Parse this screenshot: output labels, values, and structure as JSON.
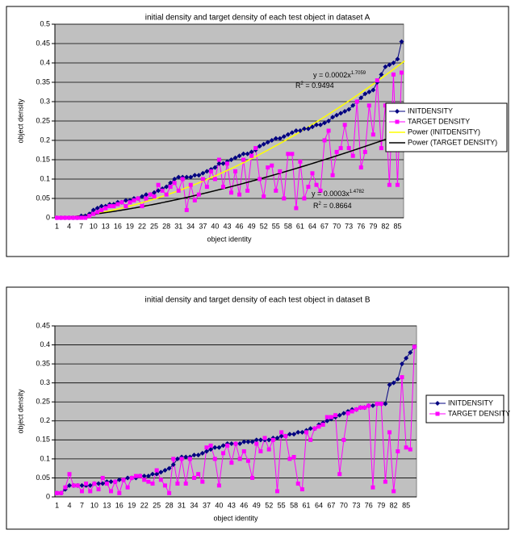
{
  "chart_data": [
    {
      "type": "line",
      "title": "initial density and target density of each test object in dataset A",
      "x_label": "object identity",
      "y_label": "object density",
      "ylim": [
        0,
        0.5
      ],
      "yticks": [
        0,
        0.05,
        0.1,
        0.15,
        0.2,
        0.25,
        0.3,
        0.35,
        0.4,
        0.45,
        0.5
      ],
      "grid": true,
      "categories": [
        "1",
        null,
        null,
        "4",
        null,
        null,
        "7",
        null,
        null,
        "10",
        null,
        null,
        "13",
        null,
        null,
        "16",
        null,
        null,
        "19",
        null,
        null,
        "22",
        null,
        null,
        "25",
        null,
        null,
        "28",
        null,
        null,
        "31",
        null,
        null,
        "34",
        null,
        null,
        "37",
        null,
        null,
        "40",
        null,
        null,
        "43",
        null,
        null,
        "46",
        null,
        null,
        "49",
        null,
        null,
        "52",
        null,
        null,
        "55",
        null,
        null,
        "58",
        null,
        null,
        "61",
        null,
        null,
        "64",
        null,
        null,
        "67",
        null,
        null,
        "70",
        null,
        null,
        "73",
        null,
        null,
        "76",
        null,
        null,
        "79",
        null,
        null,
        "82",
        null,
        null,
        "85",
        null
      ],
      "series": [
        {
          "name": "INITDENSITY",
          "color": "#000080",
          "marker": "diamond",
          "values": [
            0,
            0,
            0,
            0,
            0,
            0,
            0.005,
            0.005,
            0.01,
            0.02,
            0.025,
            0.03,
            0.03,
            0.035,
            0.035,
            0.04,
            0.04,
            0.045,
            0.045,
            0.05,
            0.05,
            0.055,
            0.06,
            0.06,
            0.065,
            0.07,
            0.075,
            0.08,
            0.09,
            0.1,
            0.105,
            0.105,
            0.105,
            0.105,
            0.11,
            0.11,
            0.115,
            0.12,
            0.125,
            0.13,
            0.14,
            0.14,
            0.145,
            0.15,
            0.155,
            0.16,
            0.165,
            0.165,
            0.17,
            0.175,
            0.185,
            0.19,
            0.195,
            0.2,
            0.205,
            0.205,
            0.21,
            0.215,
            0.22,
            0.225,
            0.225,
            0.23,
            0.23,
            0.235,
            0.24,
            0.24,
            0.245,
            0.25,
            0.26,
            0.265,
            0.27,
            0.275,
            0.28,
            0.29,
            0.3,
            0.31,
            0.32,
            0.325,
            0.33,
            0.35,
            0.37,
            0.39,
            0.395,
            0.4,
            0.41,
            0.455
          ]
        },
        {
          "name": "TARGET DENSITY",
          "color": "#ff00ff",
          "marker": "square",
          "values": [
            0,
            0,
            0,
            0,
            0,
            0,
            0,
            0,
            0.005,
            0.01,
            0.015,
            0.02,
            0.025,
            0.03,
            0.03,
            0.035,
            0.04,
            0.03,
            0.04,
            0.045,
            0.05,
            0.03,
            0.05,
            0.06,
            0.055,
            0.085,
            0.07,
            0.06,
            0.08,
            0.09,
            0.07,
            0.1,
            0.02,
            0.085,
            0.045,
            0.06,
            0.1,
            0.08,
            0.12,
            0.1,
            0.15,
            0.08,
            0.14,
            0.065,
            0.12,
            0.06,
            0.15,
            0.07,
            0.16,
            0.18,
            0.1,
            0.055,
            0.13,
            0.135,
            0.07,
            0.12,
            0.05,
            0.165,
            0.165,
            0.025,
            0.145,
            0.05,
            0.08,
            0.115,
            0.085,
            0.07,
            0.2,
            0.225,
            0.11,
            0.17,
            0.18,
            0.24,
            0.18,
            0.16,
            0.3,
            0.13,
            0.17,
            0.29,
            0.215,
            0.355,
            0.18,
            0.29,
            0.085,
            0.37,
            0.085,
            0.375
          ]
        },
        {
          "name": "Power (INITDENSITY)",
          "color": "#ffff00",
          "trend": "power",
          "coef": 0.0002,
          "exp": 1.7059
        },
        {
          "name": "Power (TARGET DENSITY)",
          "color": "#000000",
          "trend": "power",
          "coef": 0.0003,
          "exp": 1.4782
        }
      ],
      "annotations": [
        {
          "text": "y = 0.0002x",
          "sup": "1.7059"
        },
        {
          "text": "R",
          "sup": "2",
          "tail": " = 0.9494"
        },
        {
          "text": "y = 0.0003x",
          "sup": "1.4782"
        },
        {
          "text": "R",
          "sup": "2",
          "tail": " = 0.8664"
        }
      ]
    },
    {
      "type": "line",
      "title": "initial density and target density of each test object in dataset B",
      "x_label": "object identity",
      "y_label": "object density",
      "ylim": [
        0,
        0.45
      ],
      "yticks": [
        0,
        0.05,
        0.1,
        0.15,
        0.2,
        0.25,
        0.3,
        0.35,
        0.4,
        0.45
      ],
      "grid": true,
      "categories": [
        "1",
        null,
        null,
        "4",
        null,
        null,
        "7",
        null,
        null,
        "10",
        null,
        null,
        "13",
        null,
        null,
        "16",
        null,
        null,
        "19",
        null,
        null,
        "22",
        null,
        null,
        "25",
        null,
        null,
        "28",
        null,
        null,
        "31",
        null,
        null,
        "34",
        null,
        null,
        "37",
        null,
        null,
        "40",
        null,
        null,
        "43",
        null,
        null,
        "46",
        null,
        null,
        "49",
        null,
        null,
        "52",
        null,
        null,
        "55",
        null,
        null,
        "58",
        null,
        null,
        "61",
        null,
        null,
        "64",
        null,
        null,
        "67",
        null,
        null,
        "70",
        null,
        null,
        "73",
        null,
        null,
        "76",
        null,
        null,
        "79",
        null,
        null,
        "82",
        null,
        null,
        "85",
        null,
        null
      ],
      "series": [
        {
          "name": "INITDENSITY",
          "color": "#000080",
          "marker": "diamond",
          "values": [
            0.01,
            0.01,
            0.02,
            0.03,
            0.03,
            0.03,
            0.03,
            0.03,
            0.03,
            0.035,
            0.035,
            0.035,
            0.04,
            0.04,
            0.04,
            0.045,
            0.045,
            0.05,
            0.05,
            0.05,
            0.055,
            0.055,
            0.055,
            0.06,
            0.06,
            0.065,
            0.07,
            0.075,
            0.085,
            0.1,
            0.105,
            0.105,
            0.105,
            0.11,
            0.11,
            0.115,
            0.12,
            0.125,
            0.13,
            0.13,
            0.135,
            0.14,
            0.14,
            0.14,
            0.14,
            0.145,
            0.145,
            0.145,
            0.15,
            0.15,
            0.15,
            0.15,
            0.155,
            0.155,
            0.16,
            0.16,
            0.165,
            0.165,
            0.17,
            0.17,
            0.175,
            0.18,
            0.18,
            0.19,
            0.195,
            0.2,
            0.205,
            0.21,
            0.215,
            0.22,
            0.225,
            0.23,
            0.23,
            0.235,
            0.235,
            0.24,
            0.24,
            0.245,
            0.245,
            0.245,
            0.295,
            0.3,
            0.31,
            0.35,
            0.365,
            0.38,
            0.395
          ]
        },
        {
          "name": "TARGET DENSITY",
          "color": "#ff00ff",
          "marker": "square",
          "values": [
            0.01,
            0.01,
            0.025,
            0.06,
            0.03,
            0.03,
            0.015,
            0.035,
            0.015,
            0.035,
            0.02,
            0.05,
            0.035,
            0.015,
            0.04,
            0.01,
            0.045,
            0.025,
            0.05,
            0.055,
            0.055,
            0.045,
            0.04,
            0.035,
            0.07,
            0.045,
            0.03,
            0.01,
            0.1,
            0.035,
            0.1,
            0.035,
            0.1,
            0.05,
            0.06,
            0.04,
            0.13,
            0.135,
            0.1,
            0.03,
            0.115,
            0.135,
            0.09,
            0.14,
            0.1,
            0.12,
            0.095,
            0.05,
            0.14,
            0.12,
            0.155,
            0.125,
            0.15,
            0.015,
            0.17,
            0.16,
            0.1,
            0.105,
            0.035,
            0.02,
            0.17,
            0.15,
            0.18,
            0.185,
            0.19,
            0.21,
            0.21,
            0.215,
            0.06,
            0.15,
            0.22,
            0.225,
            0.23,
            0.235,
            0.235,
            0.24,
            0.025,
            0.245,
            0.245,
            0.04,
            0.17,
            0.015,
            0.12,
            0.315,
            0.13,
            0.125,
            0.395
          ]
        }
      ]
    }
  ]
}
